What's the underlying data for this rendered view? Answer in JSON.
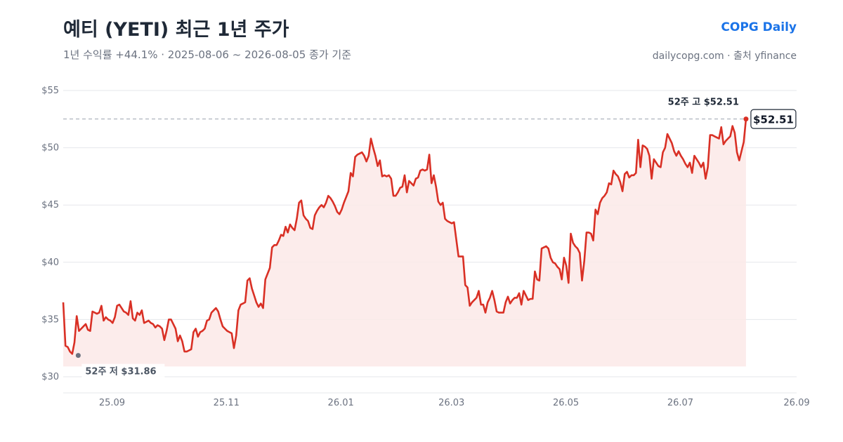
{
  "header": {
    "title": "예티 (YETI) 최근 1년 주가",
    "subtitle": "1년 수익률 +44.1%  ·  2025-08-06 ~ 2026-08-05 종가 기준",
    "brand": "COPG Daily",
    "source": "dailycopg.com · 출처 yfinance"
  },
  "colors": {
    "line": "#d93025",
    "area": "#fbe9e7",
    "grid": "#e5e7eb",
    "low_marker": "#6b7280"
  },
  "chart_data": {
    "type": "line",
    "title": "예티 (YETI) 최근 1년 주가",
    "x_start": "2025-08-06",
    "x_end": "2026-08-05",
    "xlim": [
      "2025-08-06",
      "2026-09-01"
    ],
    "ylim": [
      30,
      55
    ],
    "yticks": [
      30,
      35,
      40,
      45,
      50,
      55
    ],
    "ytick_labels": [
      "$30",
      "$35",
      "$40",
      "$45",
      "$50",
      "$55"
    ],
    "xticks": [
      "2025-09-01",
      "2025-11-01",
      "2026-01-01",
      "2026-03-01",
      "2026-05-01",
      "2026-07-01",
      "2026-09-01"
    ],
    "xtick_labels": [
      "25.09",
      "25.11",
      "26.01",
      "26.03",
      "26.05",
      "26.07",
      "26.09"
    ],
    "grid": true,
    "series": [
      {
        "values": [
          36.5,
          32.7,
          32.6,
          32.2,
          32.0,
          33.0,
          35.3,
          34.0,
          34.2,
          34.4,
          34.6,
          34.1,
          34.0,
          35.7,
          35.6,
          35.5,
          35.6,
          36.2,
          34.9,
          35.2,
          35.0,
          34.9,
          34.7,
          35.2,
          36.2,
          36.3,
          36.0,
          35.7,
          35.6,
          35.4,
          36.6,
          35.1,
          34.9,
          35.6,
          35.4,
          35.8,
          34.7,
          34.8,
          34.9,
          34.7,
          34.6,
          34.3,
          34.5,
          34.4,
          34.2,
          33.2,
          34.0,
          35.0,
          35.0,
          34.6,
          34.2,
          33.1,
          33.6,
          33.1,
          32.2,
          32.2,
          32.3,
          32.4,
          33.9,
          34.2,
          33.5,
          33.9,
          34.0,
          34.2,
          34.9,
          35.0,
          35.6,
          35.8,
          36.0,
          35.7,
          35.0,
          34.4,
          34.2,
          34.0,
          33.9,
          33.8,
          32.5,
          33.6,
          35.8,
          36.3,
          36.4,
          36.5,
          38.4,
          38.6,
          37.7,
          37.1,
          36.5,
          36.1,
          36.4,
          36.0,
          38.5,
          39.0,
          39.5,
          41.3,
          41.5,
          41.5,
          41.9,
          42.4,
          42.3,
          43.1,
          42.6,
          43.3,
          43.0,
          42.8,
          43.8,
          45.2,
          45.4,
          44.1,
          43.8,
          43.6,
          43.0,
          42.9,
          44.1,
          44.5,
          44.8,
          45.0,
          44.8,
          45.2,
          45.8,
          45.6,
          45.3,
          44.9,
          44.4,
          44.2,
          44.6,
          45.2,
          45.7,
          46.2,
          47.8,
          47.5,
          49.2,
          49.4,
          49.5,
          49.6,
          49.3,
          48.8,
          49.3,
          50.8,
          50.0,
          49.3,
          48.4,
          48.9,
          47.5,
          47.6,
          47.5,
          47.6,
          47.3,
          45.8,
          45.8,
          46.1,
          46.5,
          46.6,
          47.6,
          46.1,
          47.1,
          46.9,
          46.7,
          47.3,
          47.4,
          48.0,
          48.1,
          48.0,
          48.1,
          49.4,
          46.9,
          47.6,
          46.6,
          45.3,
          45.0,
          45.2,
          43.8,
          43.6,
          43.5,
          43.4,
          43.5,
          42.0,
          40.5,
          40.5,
          40.5,
          38.0,
          37.8,
          36.2,
          36.5,
          36.7,
          36.9,
          37.5,
          36.3,
          36.3,
          35.6,
          36.5,
          36.9,
          37.5,
          36.7,
          35.7,
          35.6,
          35.6,
          35.6,
          36.5,
          37.0,
          36.4,
          36.7,
          36.9,
          36.9,
          37.3,
          36.3,
          37.5,
          37.1,
          36.7,
          36.8,
          36.8,
          39.2,
          38.5,
          38.4,
          41.2,
          41.3,
          41.4,
          41.2,
          40.4,
          40.0,
          39.9,
          39.6,
          39.4,
          38.5,
          40.4,
          39.7,
          38.2,
          42.5,
          41.7,
          41.4,
          41.2,
          40.8,
          38.4,
          40.1,
          42.6,
          42.6,
          42.5,
          41.9,
          44.6,
          44.2,
          45.2,
          45.6,
          45.8,
          46.1,
          46.9,
          46.8,
          48.0,
          47.7,
          47.5,
          47.0,
          46.2,
          47.7,
          47.9,
          47.4,
          47.6,
          47.6,
          47.8,
          50.7,
          48.3,
          50.2,
          50.1,
          49.9,
          49.3,
          47.3,
          49.0,
          48.7,
          48.4,
          48.3,
          49.6,
          50.0,
          51.2,
          50.8,
          50.4,
          49.7,
          49.3,
          49.7,
          49.3,
          49.0,
          48.6,
          48.3,
          48.7,
          47.8,
          49.3,
          49.0,
          48.7,
          48.3,
          48.7,
          47.3,
          48.3,
          51.1,
          51.1,
          51.0,
          50.9,
          50.8,
          51.8,
          50.3,
          50.6,
          50.8,
          51.0,
          51.9,
          51.3,
          49.6,
          48.9,
          49.7,
          50.5,
          52.51
        ]
      }
    ],
    "annotations": {
      "high_label": "52주 고 $52.51",
      "low_label": "52주 저 $31.86",
      "last_label": "$52.51",
      "high_value": 52.51,
      "low_value": 31.86,
      "low_date": "2025-08-14"
    }
  }
}
